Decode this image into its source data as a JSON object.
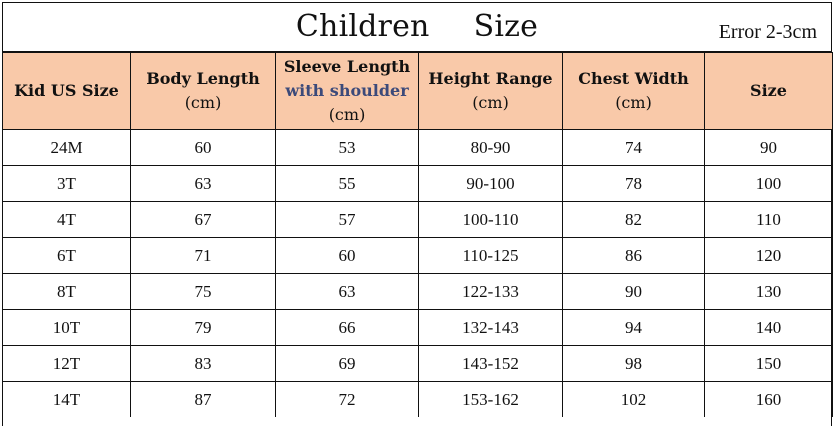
{
  "title_part1": "Children",
  "title_part2": "Size",
  "error_note": "Error 2-3cm",
  "headers": [
    {
      "line1": "Kid US Size",
      "line2": "",
      "line3": ""
    },
    {
      "line1": "Body Length",
      "line2": "(cm)",
      "line3": ""
    },
    {
      "line1": "Sleeve Length",
      "line2": "with shoulder",
      "line3": "(cm)"
    },
    {
      "line1": "Height Range",
      "line2": "(cm)",
      "line3": ""
    },
    {
      "line1": "Chest Width",
      "line2": "(cm)",
      "line3": ""
    },
    {
      "line1": "Size",
      "line2": "",
      "line3": ""
    }
  ],
  "rows": [
    [
      "24M",
      "60",
      "53",
      "80-90",
      "74",
      "90"
    ],
    [
      "3T",
      "63",
      "55",
      "90-100",
      "78",
      "100"
    ],
    [
      "4T",
      "67",
      "57",
      "100-110",
      "82",
      "110"
    ],
    [
      "6T",
      "71",
      "60",
      "110-125",
      "86",
      "120"
    ],
    [
      "8T",
      "75",
      "63",
      "122-133",
      "90",
      "130"
    ],
    [
      "10T",
      "79",
      "66",
      "132-143",
      "94",
      "140"
    ],
    [
      "12T",
      "83",
      "69",
      "143-152",
      "98",
      "150"
    ],
    [
      "14T",
      "87",
      "72",
      "153-162",
      "102",
      "160"
    ]
  ],
  "colors": {
    "header_bg": "#f9c9a9",
    "sleeve_note": "#3c4a7a"
  }
}
